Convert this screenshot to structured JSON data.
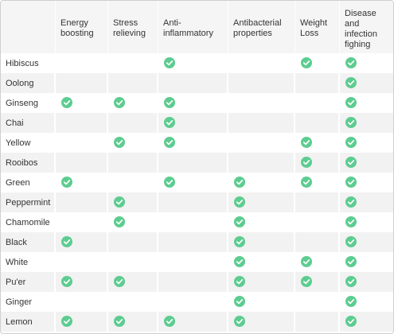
{
  "table": {
    "columns": [
      "",
      "Energy boosting",
      "Stress relieving",
      "Anti-inflammatory",
      "Antibacterial properties",
      "Weight Loss",
      "Disease and infection fighing"
    ],
    "check_color": "#5dcc90",
    "check_icon": "checkmark-circle-icon",
    "rows": [
      {
        "name": "Hibiscus",
        "checks": [
          false,
          false,
          true,
          false,
          true,
          true
        ]
      },
      {
        "name": "Oolong",
        "checks": [
          false,
          false,
          false,
          false,
          false,
          true
        ]
      },
      {
        "name": "Ginseng",
        "checks": [
          true,
          true,
          true,
          false,
          false,
          true
        ]
      },
      {
        "name": "Chai",
        "checks": [
          false,
          false,
          true,
          false,
          false,
          true
        ]
      },
      {
        "name": "Yellow",
        "checks": [
          false,
          true,
          true,
          false,
          true,
          true
        ]
      },
      {
        "name": "Rooibos",
        "checks": [
          false,
          false,
          false,
          false,
          true,
          true
        ]
      },
      {
        "name": "Green",
        "checks": [
          true,
          false,
          true,
          true,
          true,
          true
        ]
      },
      {
        "name": "Peppermint",
        "checks": [
          false,
          true,
          false,
          true,
          false,
          true
        ]
      },
      {
        "name": "Chamomile",
        "checks": [
          false,
          true,
          false,
          true,
          false,
          true
        ]
      },
      {
        "name": "Black",
        "checks": [
          true,
          false,
          false,
          true,
          false,
          true
        ]
      },
      {
        "name": "White",
        "checks": [
          false,
          false,
          false,
          true,
          true,
          true
        ]
      },
      {
        "name": "Pu'er",
        "checks": [
          true,
          true,
          false,
          true,
          true,
          true
        ]
      },
      {
        "name": "Ginger",
        "checks": [
          false,
          false,
          false,
          true,
          false,
          true
        ]
      },
      {
        "name": "Lemon",
        "checks": [
          true,
          true,
          true,
          true,
          false,
          true
        ]
      }
    ]
  }
}
